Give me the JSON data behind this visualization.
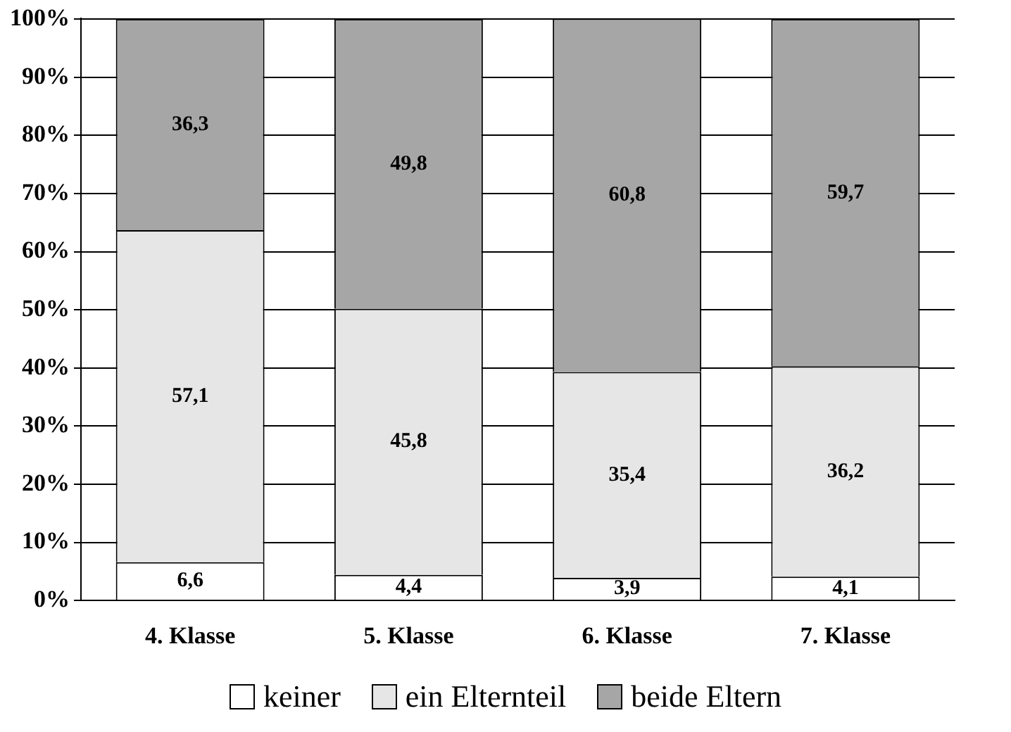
{
  "chart_data": {
    "type": "bar",
    "stacked": true,
    "categories": [
      "4. Klasse",
      "5. Klasse",
      "6. Klasse",
      "7. Klasse"
    ],
    "series": [
      {
        "name": "keiner",
        "color": "#ffffff",
        "values": [
          6.6,
          4.4,
          3.9,
          4.1
        ],
        "value_labels": [
          "6,6",
          "4,4",
          "3,9",
          "4,1"
        ]
      },
      {
        "name": "ein Elternteil",
        "color": "#e6e6e6",
        "values": [
          57.1,
          45.8,
          35.4,
          36.2
        ],
        "value_labels": [
          "57,1",
          "45,8",
          "35,4",
          "36,2"
        ]
      },
      {
        "name": "beide Eltern",
        "color": "#a6a6a6",
        "values": [
          36.3,
          49.8,
          60.8,
          59.7
        ],
        "value_labels": [
          "36,3",
          "49,8",
          "60,8",
          "59,7"
        ]
      }
    ],
    "ylim": [
      0,
      100.1
    ],
    "yticks": [
      {
        "value": 0,
        "label": "0%"
      },
      {
        "value": 10,
        "label": "10%"
      },
      {
        "value": 20,
        "label": "20%"
      },
      {
        "value": 30,
        "label": "30%"
      },
      {
        "value": 40,
        "label": "40%"
      },
      {
        "value": 50,
        "label": "50%"
      },
      {
        "value": 60,
        "label": "60%"
      },
      {
        "value": 70,
        "label": "70%"
      },
      {
        "value": 80,
        "label": "80%"
      },
      {
        "value": 90,
        "label": "90%"
      },
      {
        "value": 100,
        "label": "100%"
      }
    ],
    "grid": "y",
    "legend": "bottom"
  }
}
